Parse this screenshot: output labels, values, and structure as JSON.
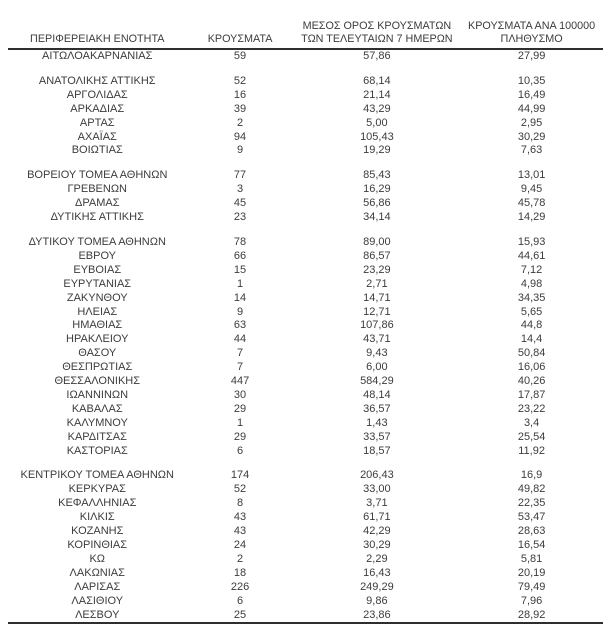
{
  "colors": {
    "text": "#3c3c3c",
    "rule": "#2e2e2e",
    "background": "#ffffff"
  },
  "table": {
    "columns": [
      {
        "id": "region",
        "label_lines": [
          "ΠΕΡΙΦΕΡΕΙΑΚΗ ΕΝΟΤΗΤΑ"
        ]
      },
      {
        "id": "cases",
        "label_lines": [
          "ΚΡΟΥΣΜΑΤΑ"
        ]
      },
      {
        "id": "avg7",
        "label_lines": [
          "ΜΕΣΟΣ ΟΡΟΣ ΚΡΟΥΣΜΑΤΩΝ",
          "ΤΩΝ ΤΕΛΕΥΤΑΙΩΝ 7 ΗΜΕΡΩΝ"
        ]
      },
      {
        "id": "per100k",
        "label_lines": [
          "ΚΡΟΥΣΜΑΤΑ ΑΝΑ 100000",
          "ΠΛΗΘΥΣΜΟ"
        ]
      }
    ],
    "groups": [
      {
        "rows": [
          [
            "ΑΙΤΩΛΟΑΚΑΡΝΑΝΙΑΣ",
            "59",
            "57,86",
            "27,99"
          ]
        ]
      },
      {
        "rows": [
          [
            "ΑΝΑΤΟΛΙΚΗΣ ΑΤΤΙΚΗΣ",
            "52",
            "68,14",
            "10,35"
          ],
          [
            "ΑΡΓΟΛΙΔΑΣ",
            "16",
            "21,14",
            "16,49"
          ],
          [
            "ΑΡΚΑΔΙΑΣ",
            "39",
            "43,29",
            "44,99"
          ],
          [
            "ΑΡΤΑΣ",
            "2",
            "5,00",
            "2,95"
          ],
          [
            "ΑΧΑΪΑΣ",
            "94",
            "105,43",
            "30,29"
          ],
          [
            "ΒΟΙΩΤΙΑΣ",
            "9",
            "19,29",
            "7,63"
          ]
        ]
      },
      {
        "rows": [
          [
            "ΒΟΡΕΙΟΥ ΤΟΜΕΑ ΑΘΗΝΩΝ",
            "77",
            "85,43",
            "13,01"
          ],
          [
            "ΓΡΕΒΕΝΩΝ",
            "3",
            "16,29",
            "9,45"
          ],
          [
            "ΔΡΑΜΑΣ",
            "45",
            "56,86",
            "45,78"
          ],
          [
            "ΔΥΤΙΚΗΣ ΑΤΤΙΚΗΣ",
            "23",
            "34,14",
            "14,29"
          ]
        ]
      },
      {
        "rows": [
          [
            "ΔΥΤΙΚΟΥ ΤΟΜΕΑ ΑΘΗΝΩΝ",
            "78",
            "89,00",
            "15,93"
          ],
          [
            "ΕΒΡΟΥ",
            "66",
            "86,57",
            "44,61"
          ],
          [
            "ΕΥΒΟΙΑΣ",
            "15",
            "23,29",
            "7,12"
          ],
          [
            "ΕΥΡΥΤΑΝΙΑΣ",
            "1",
            "2,71",
            "4,98"
          ],
          [
            "ΖΑΚΥΝΘΟΥ",
            "14",
            "14,71",
            "34,35"
          ],
          [
            "ΗΛΕΙΑΣ",
            "9",
            "12,71",
            "5,65"
          ],
          [
            "ΗΜΑΘΙΑΣ",
            "63",
            "107,86",
            "44,8"
          ],
          [
            "ΗΡΑΚΛΕΙΟΥ",
            "44",
            "43,71",
            "14,4"
          ],
          [
            "ΘΑΣΟΥ",
            "7",
            "9,43",
            "50,84"
          ],
          [
            "ΘΕΣΠΡΩΤΙΑΣ",
            "7",
            "6,00",
            "16,06"
          ],
          [
            "ΘΕΣΣΑΛΟΝΙΚΗΣ",
            "447",
            "584,29",
            "40,26"
          ],
          [
            "ΙΩΑΝΝΙΝΩΝ",
            "30",
            "48,14",
            "17,87"
          ],
          [
            "ΚΑΒΑΛΑΣ",
            "29",
            "36,57",
            "23,22"
          ],
          [
            "ΚΑΛΥΜΝΟΥ",
            "1",
            "1,43",
            "3,4"
          ],
          [
            "ΚΑΡΔΙΤΣΑΣ",
            "29",
            "33,57",
            "25,54"
          ],
          [
            "ΚΑΣΤΟΡΙΑΣ",
            "6",
            "18,57",
            "11,92"
          ]
        ]
      },
      {
        "rows": [
          [
            "ΚΕΝΤΡΙΚΟΥ ΤΟΜΕΑ ΑΘΗΝΩΝ",
            "174",
            "206,43",
            "16,9"
          ],
          [
            "ΚΕΡΚΥΡΑΣ",
            "52",
            "33,00",
            "49,82"
          ],
          [
            "ΚΕΦΑΛΛΗΝΙΑΣ",
            "8",
            "3,71",
            "22,35"
          ],
          [
            "ΚΙΛΚΙΣ",
            "43",
            "61,71",
            "53,47"
          ],
          [
            "ΚΟΖΑΝΗΣ",
            "43",
            "42,29",
            "28,63"
          ],
          [
            "ΚΟΡΙΝΘΙΑΣ",
            "24",
            "30,29",
            "16,54"
          ],
          [
            "ΚΩ",
            "2",
            "2,29",
            "5,81"
          ],
          [
            "ΛΑΚΩΝΙΑΣ",
            "18",
            "16,43",
            "20,19"
          ],
          [
            "ΛΑΡΙΣΑΣ",
            "226",
            "249,29",
            "79,49"
          ],
          [
            "ΛΑΣΙΘΙΟΥ",
            "6",
            "9,86",
            "7,96"
          ],
          [
            "ΛΕΣΒΟΥ",
            "25",
            "23,86",
            "28,92"
          ]
        ]
      }
    ]
  }
}
